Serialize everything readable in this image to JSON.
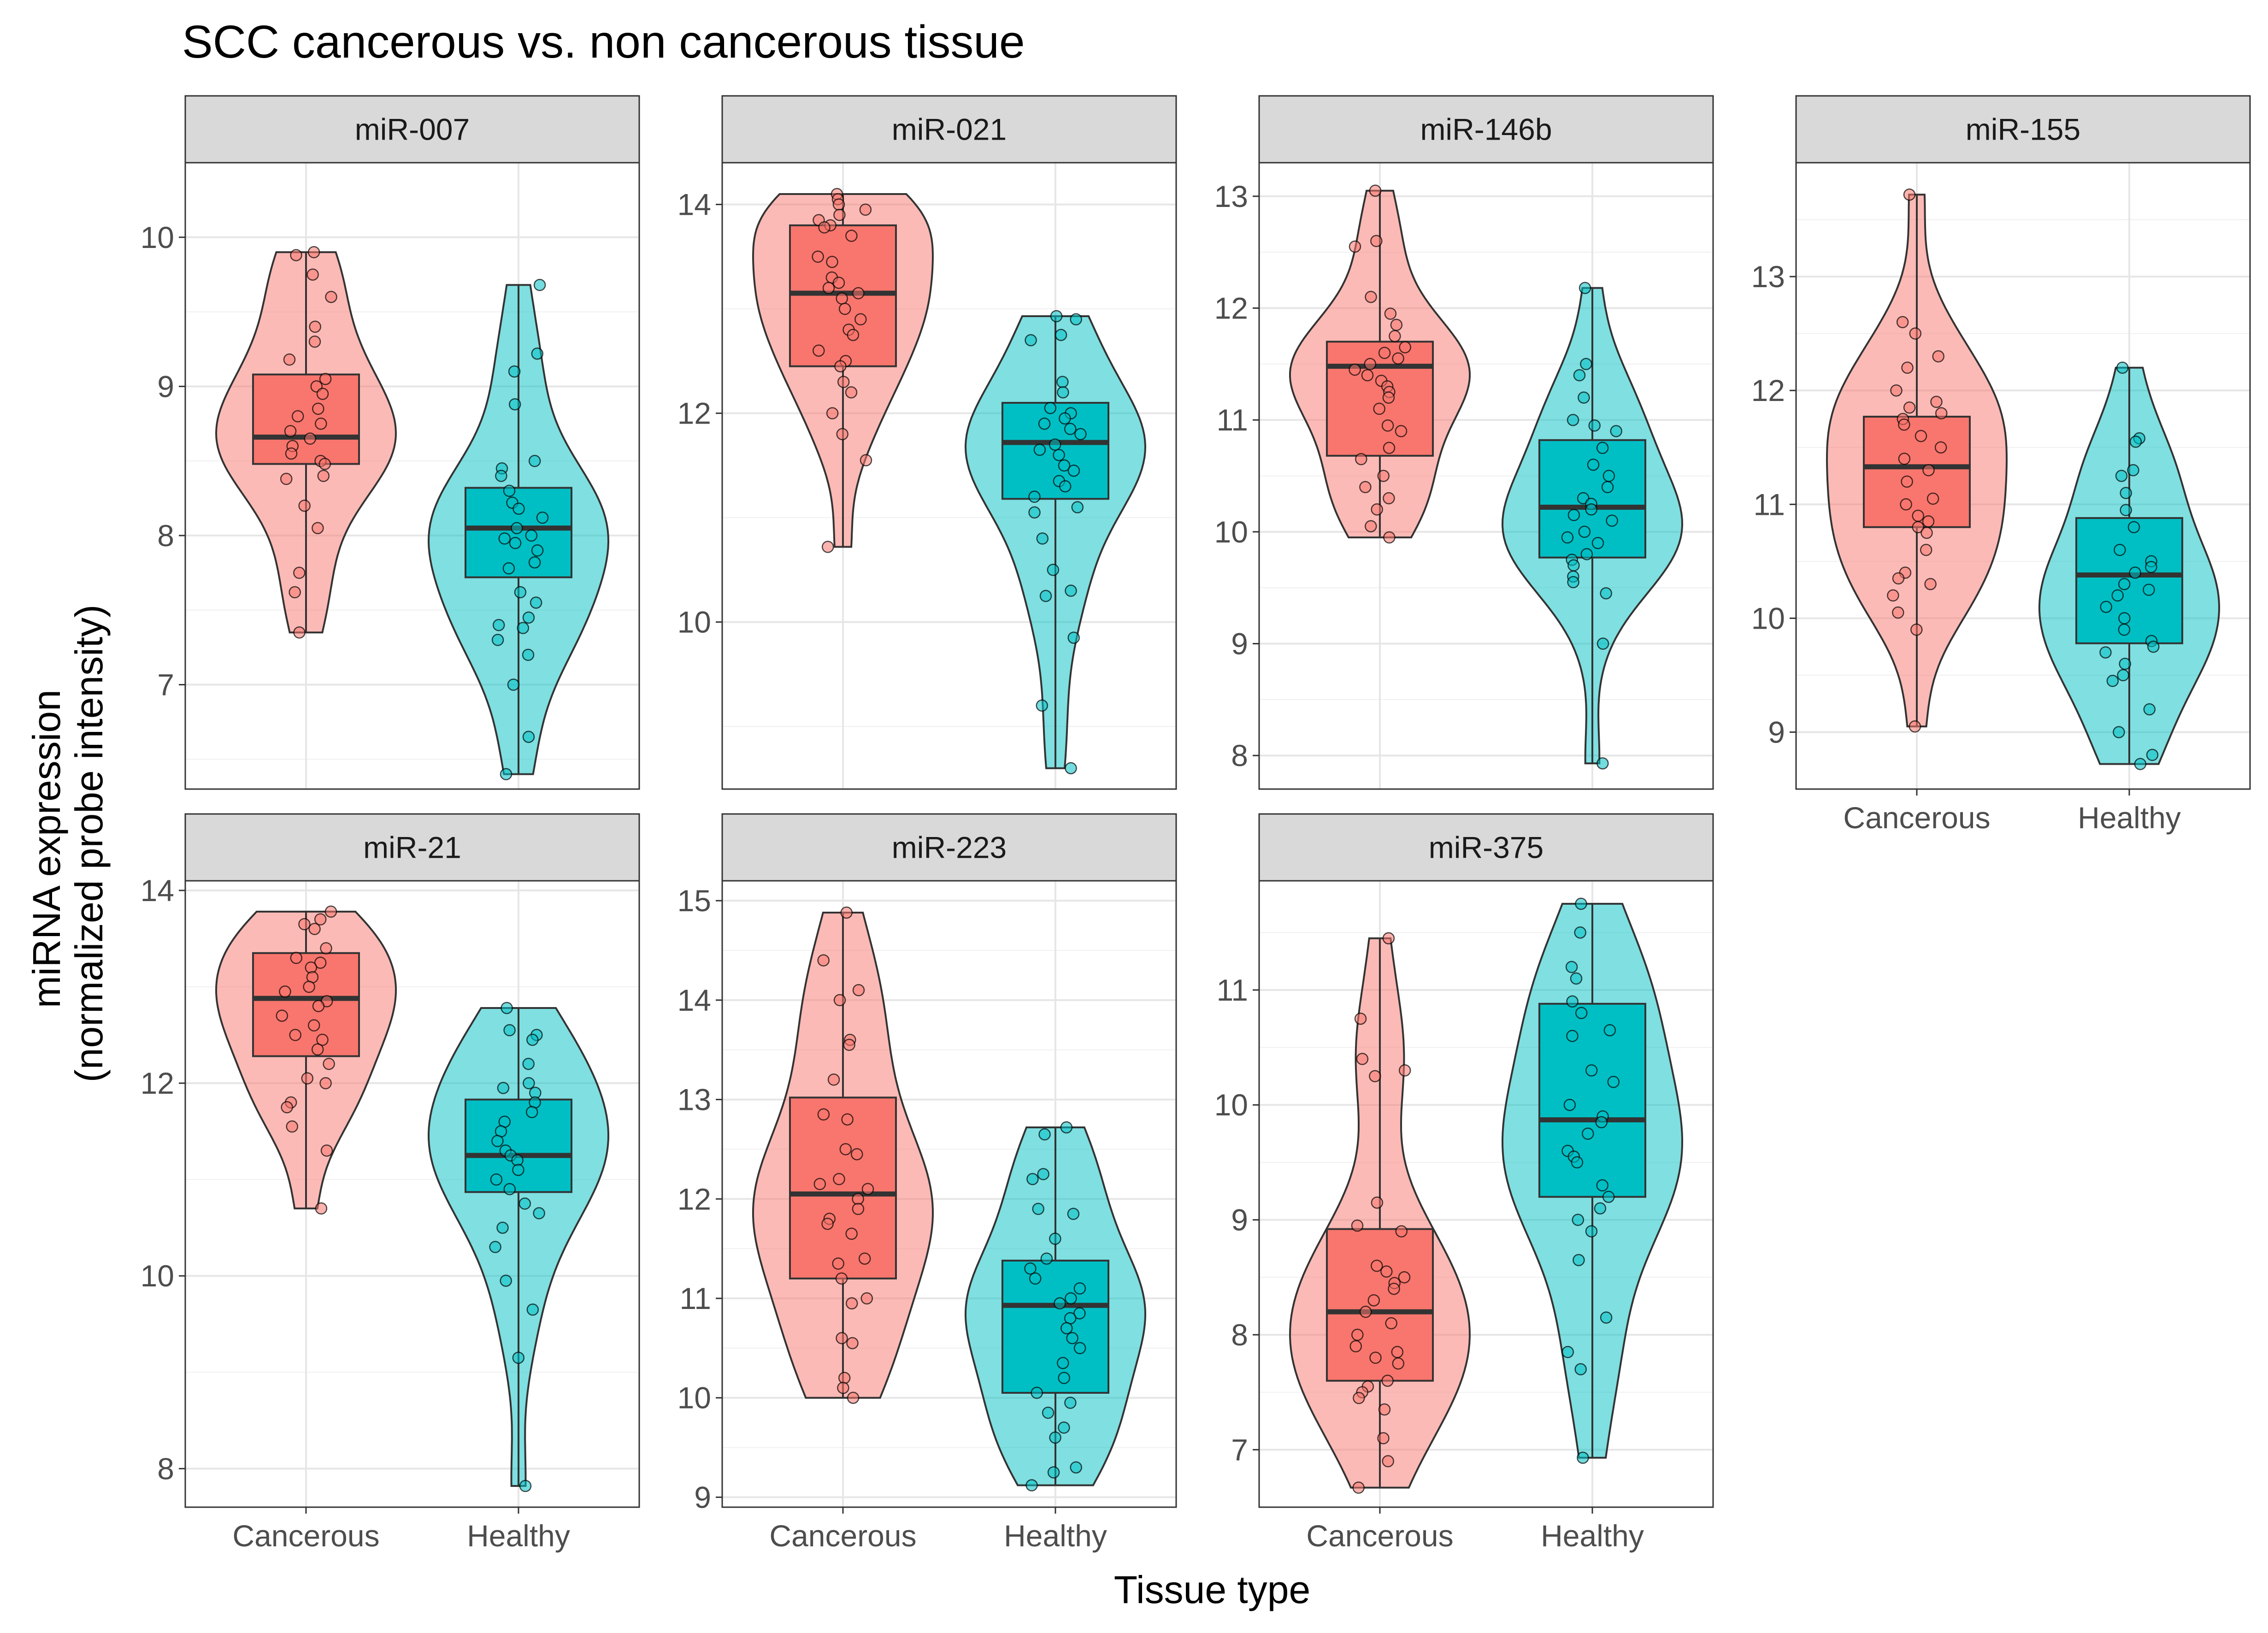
{
  "chart_data": {
    "type": "violin-box-jitter",
    "title": "SCC cancerous vs. non cancerous tissue",
    "xlabel": "Tissue type",
    "ylabel": "miRNA expression\n(normalized probe intensity)",
    "ylabel_lines": [
      "miRNA expression",
      "(normalized probe intensity)"
    ],
    "categories": [
      "Cancerous",
      "Healthy"
    ],
    "colors": {
      "Cancerous": "#F8766D",
      "Healthy": "#00BFC4"
    },
    "grid": true,
    "legend": "none",
    "panels": [
      {
        "label": "miR-007",
        "ylim": [
          6.3,
          10.5
        ],
        "yticks": [
          7,
          8,
          9,
          10
        ],
        "groups": [
          {
            "name": "Cancerous",
            "min": 7.35,
            "q1": 8.48,
            "median": 8.66,
            "q3": 9.08,
            "max": 9.9,
            "points": [
              9.9,
              9.88,
              9.75,
              9.6,
              9.4,
              9.3,
              9.18,
              9.05,
              9.0,
              8.95,
              8.85,
              8.8,
              8.75,
              8.7,
              8.65,
              8.6,
              8.55,
              8.5,
              8.48,
              8.4,
              8.38,
              8.2,
              8.05,
              7.75,
              7.62,
              7.35
            ]
          },
          {
            "name": "Healthy",
            "min": 6.4,
            "q1": 7.72,
            "median": 8.05,
            "q3": 8.32,
            "max": 9.68,
            "points": [
              9.68,
              9.22,
              9.1,
              8.88,
              8.5,
              8.45,
              8.4,
              8.3,
              8.22,
              8.18,
              8.12,
              8.05,
              8.0,
              7.98,
              7.95,
              7.9,
              7.82,
              7.78,
              7.62,
              7.55,
              7.45,
              7.4,
              7.38,
              7.3,
              7.2,
              7.0,
              6.65,
              6.4
            ]
          }
        ]
      },
      {
        "label": "miR-021",
        "ylim": [
          8.4,
          14.4
        ],
        "yticks": [
          10,
          12,
          14
        ],
        "groups": [
          {
            "name": "Cancerous",
            "min": 10.72,
            "q1": 12.45,
            "median": 13.15,
            "q3": 13.8,
            "max": 14.1,
            "points": [
              14.1,
              14.05,
              14.0,
              13.95,
              13.9,
              13.85,
              13.8,
              13.78,
              13.7,
              13.5,
              13.45,
              13.3,
              13.25,
              13.2,
              13.15,
              13.1,
              13.0,
              12.9,
              12.8,
              12.75,
              12.6,
              12.5,
              12.45,
              12.3,
              12.2,
              12.0,
              11.8,
              11.55,
              10.72
            ]
          },
          {
            "name": "Healthy",
            "min": 8.6,
            "q1": 11.18,
            "median": 11.72,
            "q3": 12.1,
            "max": 12.93,
            "points": [
              12.93,
              12.9,
              12.75,
              12.7,
              12.3,
              12.2,
              12.05,
              12.0,
              11.95,
              11.9,
              11.85,
              11.8,
              11.7,
              11.65,
              11.6,
              11.5,
              11.45,
              11.35,
              11.3,
              11.2,
              11.1,
              11.05,
              10.8,
              10.5,
              10.3,
              10.25,
              9.85,
              9.2,
              8.6
            ]
          }
        ]
      },
      {
        "label": "miR-146b",
        "ylim": [
          7.7,
          13.3
        ],
        "yticks": [
          8,
          9,
          10,
          11,
          12,
          13
        ],
        "groups": [
          {
            "name": "Cancerous",
            "min": 9.95,
            "q1": 10.68,
            "median": 11.48,
            "q3": 11.7,
            "max": 13.05,
            "points": [
              13.05,
              12.6,
              12.55,
              12.1,
              11.95,
              11.85,
              11.75,
              11.65,
              11.6,
              11.55,
              11.5,
              11.45,
              11.4,
              11.35,
              11.3,
              11.25,
              11.2,
              11.1,
              10.95,
              10.9,
              10.75,
              10.65,
              10.5,
              10.4,
              10.3,
              10.2,
              10.05,
              9.95
            ]
          },
          {
            "name": "Healthy",
            "min": 7.93,
            "q1": 9.77,
            "median": 10.22,
            "q3": 10.82,
            "max": 12.18,
            "points": [
              12.18,
              11.5,
              11.4,
              11.2,
              11.0,
              10.95,
              10.9,
              10.75,
              10.6,
              10.5,
              10.4,
              10.3,
              10.25,
              10.2,
              10.15,
              10.1,
              10.0,
              9.95,
              9.9,
              9.8,
              9.75,
              9.7,
              9.6,
              9.55,
              9.45,
              9.0,
              7.93
            ]
          }
        ]
      },
      {
        "label": "miR-155",
        "ylim": [
          8.5,
          14.0
        ],
        "yticks": [
          9,
          10,
          11,
          12,
          13
        ],
        "groups": [
          {
            "name": "Cancerous",
            "min": 9.05,
            "q1": 10.8,
            "median": 11.33,
            "q3": 11.77,
            "max": 13.72,
            "points": [
              13.72,
              12.6,
              12.5,
              12.3,
              12.2,
              12.0,
              11.9,
              11.85,
              11.8,
              11.75,
              11.7,
              11.6,
              11.5,
              11.4,
              11.3,
              11.2,
              11.05,
              11.0,
              10.9,
              10.85,
              10.8,
              10.75,
              10.6,
              10.4,
              10.35,
              10.3,
              10.2,
              10.05,
              9.9,
              9.05
            ]
          },
          {
            "name": "Healthy",
            "min": 8.72,
            "q1": 9.78,
            "median": 10.38,
            "q3": 10.88,
            "max": 12.2,
            "points": [
              12.2,
              11.58,
              11.55,
              11.3,
              11.25,
              11.1,
              10.95,
              10.8,
              10.6,
              10.5,
              10.45,
              10.4,
              10.3,
              10.25,
              10.2,
              10.1,
              10.0,
              9.9,
              9.8,
              9.75,
              9.7,
              9.6,
              9.5,
              9.45,
              9.2,
              9.0,
              8.8,
              8.72
            ]
          }
        ]
      },
      {
        "label": "miR-21",
        "ylim": [
          7.6,
          14.1
        ],
        "yticks": [
          8,
          10,
          12,
          14
        ],
        "groups": [
          {
            "name": "Cancerous",
            "min": 10.7,
            "q1": 12.28,
            "median": 12.88,
            "q3": 13.35,
            "max": 13.78,
            "points": [
              13.78,
              13.7,
              13.65,
              13.6,
              13.4,
              13.3,
              13.25,
              13.2,
              13.1,
              13.0,
              12.95,
              12.85,
              12.8,
              12.7,
              12.6,
              12.5,
              12.45,
              12.35,
              12.2,
              12.05,
              12.0,
              11.8,
              11.75,
              11.55,
              11.3,
              10.7
            ]
          },
          {
            "name": "Healthy",
            "min": 7.82,
            "q1": 10.87,
            "median": 11.25,
            "q3": 11.83,
            "max": 12.78,
            "points": [
              12.78,
              12.55,
              12.5,
              12.45,
              12.2,
              12.0,
              11.95,
              11.9,
              11.8,
              11.7,
              11.6,
              11.5,
              11.4,
              11.3,
              11.25,
              11.2,
              11.1,
              11.0,
              10.9,
              10.75,
              10.65,
              10.5,
              10.3,
              9.95,
              9.65,
              9.15,
              7.82
            ]
          }
        ]
      },
      {
        "label": "miR-223",
        "ylim": [
          8.9,
          15.2
        ],
        "yticks": [
          9,
          10,
          11,
          12,
          13,
          14,
          15
        ],
        "groups": [
          {
            "name": "Cancerous",
            "min": 10.0,
            "q1": 11.2,
            "median": 12.05,
            "q3": 13.02,
            "max": 14.88,
            "points": [
              14.88,
              14.4,
              14.1,
              14.0,
              13.6,
              13.55,
              13.2,
              12.85,
              12.8,
              12.5,
              12.45,
              12.2,
              12.15,
              12.1,
              12.0,
              11.9,
              11.8,
              11.75,
              11.65,
              11.4,
              11.35,
              11.2,
              11.0,
              10.95,
              10.6,
              10.55,
              10.2,
              10.1,
              10.0
            ]
          },
          {
            "name": "Healthy",
            "min": 9.12,
            "q1": 10.05,
            "median": 10.93,
            "q3": 11.38,
            "max": 12.72,
            "points": [
              12.72,
              12.65,
              12.25,
              12.2,
              11.9,
              11.85,
              11.6,
              11.4,
              11.3,
              11.2,
              11.1,
              11.0,
              10.95,
              10.85,
              10.8,
              10.7,
              10.6,
              10.5,
              10.35,
              10.2,
              10.05,
              9.95,
              9.85,
              9.7,
              9.6,
              9.3,
              9.25,
              9.12
            ]
          }
        ]
      },
      {
        "label": "miR-375",
        "ylim": [
          6.5,
          11.95
        ],
        "yticks": [
          7,
          8,
          9,
          10,
          11
        ],
        "groups": [
          {
            "name": "Cancerous",
            "min": 6.67,
            "q1": 7.6,
            "median": 8.2,
            "q3": 8.92,
            "max": 11.45,
            "points": [
              11.45,
              10.75,
              10.4,
              10.3,
              10.25,
              9.15,
              8.95,
              8.9,
              8.6,
              8.55,
              8.5,
              8.45,
              8.4,
              8.3,
              8.2,
              8.1,
              8.0,
              7.9,
              7.85,
              7.8,
              7.75,
              7.6,
              7.55,
              7.5,
              7.45,
              7.35,
              7.1,
              6.9,
              6.67
            ]
          },
          {
            "name": "Healthy",
            "min": 6.93,
            "q1": 9.2,
            "median": 9.87,
            "q3": 10.88,
            "max": 11.75,
            "points": [
              11.75,
              11.5,
              11.2,
              11.1,
              10.9,
              10.8,
              10.65,
              10.6,
              10.3,
              10.2,
              10.0,
              9.9,
              9.85,
              9.75,
              9.6,
              9.55,
              9.5,
              9.3,
              9.2,
              9.1,
              9.0,
              8.9,
              8.65,
              8.15,
              7.85,
              7.7,
              6.93
            ]
          }
        ]
      }
    ]
  }
}
